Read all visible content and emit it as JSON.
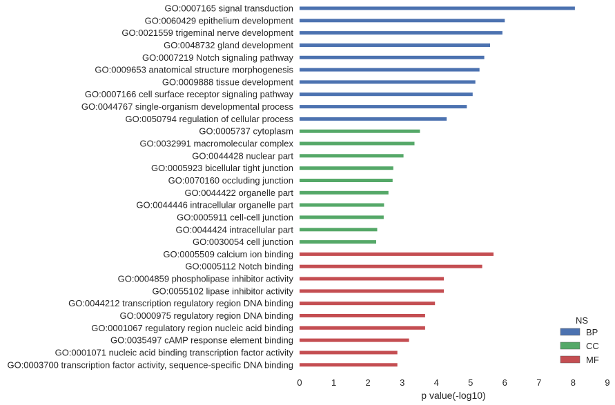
{
  "chart_data": {
    "type": "bar",
    "orientation": "horizontal",
    "xlabel": "p value(-log10)",
    "ylabel": "",
    "xlim": [
      0,
      9
    ],
    "xticks": [
      "0",
      "1",
      "2",
      "3",
      "4",
      "5",
      "6",
      "7",
      "8",
      "9"
    ],
    "grid": false,
    "legend": {
      "title": "NS",
      "placement": "bottom-right",
      "entries": [
        {
          "name": "BP",
          "color": "#4c72b0"
        },
        {
          "name": "CC",
          "color": "#55a868"
        },
        {
          "name": "MF",
          "color": "#c44e52"
        }
      ]
    },
    "categories": [
      {
        "label": "GO:0007165 signal transduction",
        "value": 8.05,
        "ns": "BP"
      },
      {
        "label": "GO:0060429 epithelium development",
        "value": 6.0,
        "ns": "BP"
      },
      {
        "label": "GO:0021559 trigeminal nerve development",
        "value": 5.93,
        "ns": "BP"
      },
      {
        "label": "GO:0048732 gland development",
        "value": 5.57,
        "ns": "BP"
      },
      {
        "label": "GO:0007219 Notch signaling pathway",
        "value": 5.4,
        "ns": "BP"
      },
      {
        "label": "GO:0009653 anatomical structure morphogenesis",
        "value": 5.26,
        "ns": "BP"
      },
      {
        "label": "GO:0009888 tissue development",
        "value": 5.14,
        "ns": "BP"
      },
      {
        "label": "GO:0007166 cell surface receptor signaling pathway",
        "value": 5.06,
        "ns": "BP"
      },
      {
        "label": "GO:0044767 single-organism developmental process",
        "value": 4.89,
        "ns": "BP"
      },
      {
        "label": "GO:0050794 regulation of cellular process",
        "value": 4.3,
        "ns": "BP"
      },
      {
        "label": "GO:0005737 cytoplasm",
        "value": 3.52,
        "ns": "CC"
      },
      {
        "label": "GO:0032991 macromolecular complex",
        "value": 3.36,
        "ns": "CC"
      },
      {
        "label": "GO:0044428 nuclear part",
        "value": 3.04,
        "ns": "CC"
      },
      {
        "label": "GO:0005923 bicellular tight junction",
        "value": 2.74,
        "ns": "CC"
      },
      {
        "label": "GO:0070160 occluding junction",
        "value": 2.72,
        "ns": "CC"
      },
      {
        "label": "GO:0044422 organelle part",
        "value": 2.6,
        "ns": "CC"
      },
      {
        "label": "GO:0044446 intracellular organelle part",
        "value": 2.47,
        "ns": "CC"
      },
      {
        "label": "GO:0005911 cell-cell junction",
        "value": 2.46,
        "ns": "CC"
      },
      {
        "label": "GO:0044424 intracellular part",
        "value": 2.27,
        "ns": "CC"
      },
      {
        "label": "GO:0030054 cell junction",
        "value": 2.24,
        "ns": "CC"
      },
      {
        "label": "GO:0005509 calcium ion binding",
        "value": 5.67,
        "ns": "MF"
      },
      {
        "label": "GO:0005112 Notch binding",
        "value": 5.34,
        "ns": "MF"
      },
      {
        "label": "GO:0004859 phospholipase inhibitor activity",
        "value": 4.22,
        "ns": "MF"
      },
      {
        "label": "GO:0055102 lipase inhibitor activity",
        "value": 4.22,
        "ns": "MF"
      },
      {
        "label": "GO:0044212 transcription regulatory region DNA binding",
        "value": 3.96,
        "ns": "MF"
      },
      {
        "label": "GO:0000975 regulatory region DNA binding",
        "value": 3.67,
        "ns": "MF"
      },
      {
        "label": "GO:0001067 regulatory region nucleic acid binding",
        "value": 3.67,
        "ns": "MF"
      },
      {
        "label": "GO:0035497 cAMP response element binding",
        "value": 3.2,
        "ns": "MF"
      },
      {
        "label": "GO:0001071 nucleic acid binding transcription factor activity",
        "value": 2.86,
        "ns": "MF"
      },
      {
        "label": "GO:0003700 transcription factor activity, sequence-specific DNA binding",
        "value": 2.86,
        "ns": "MF"
      }
    ]
  }
}
